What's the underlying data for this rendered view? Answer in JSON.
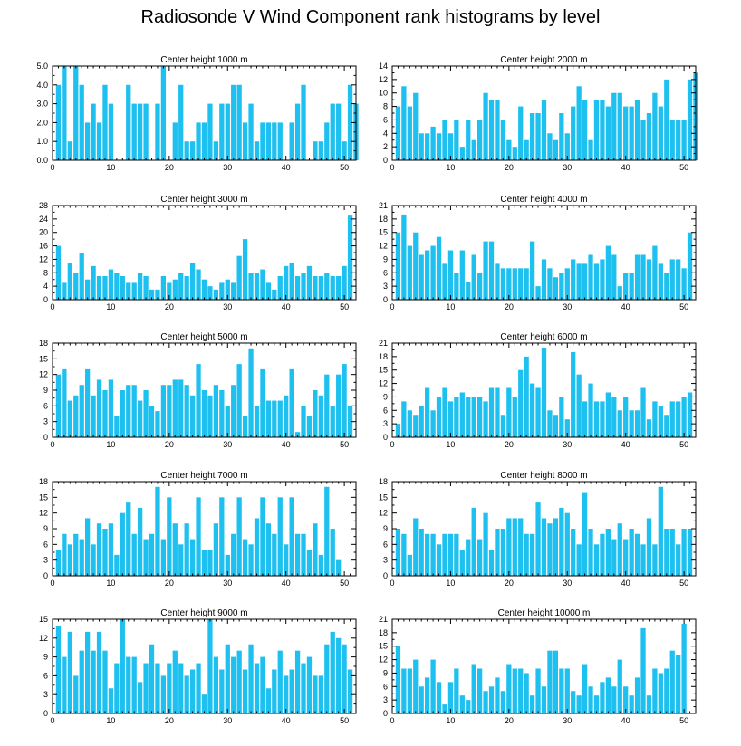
{
  "title": "Radiosonde V Wind Component rank histograms by level",
  "bar_color": "#1ec0f0",
  "chart_data": [
    {
      "type": "bar",
      "title": "Center height 1000 m",
      "xlim": [
        0,
        52
      ],
      "xticks": [
        0,
        10,
        20,
        30,
        40,
        50
      ],
      "ylim": [
        0,
        5
      ],
      "yticks": [
        "0.0",
        "1.0",
        "2.0",
        "3.0",
        "4.0",
        "5.0"
      ],
      "values": [
        4,
        5,
        1,
        5,
        4,
        2,
        3,
        2,
        4,
        3,
        0,
        0,
        4,
        3,
        3,
        3,
        0,
        3,
        5,
        0,
        2,
        4,
        1,
        1,
        2,
        2,
        3,
        1,
        3,
        3,
        4,
        4,
        2,
        3,
        1,
        2,
        2,
        2,
        2,
        0,
        2,
        3,
        4,
        0,
        1,
        1,
        2,
        3,
        3,
        1,
        4,
        3
      ]
    },
    {
      "type": "bar",
      "title": "Center height 2000 m",
      "xlim": [
        0,
        52
      ],
      "xticks": [
        0,
        10,
        20,
        30,
        40,
        50
      ],
      "ylim": [
        0,
        14
      ],
      "yticks": [
        "0",
        "2",
        "4",
        "6",
        "8",
        "10",
        "12",
        "14"
      ],
      "values": [
        8,
        11,
        8,
        10,
        4,
        4,
        5,
        4,
        6,
        4,
        6,
        2,
        6,
        3,
        6,
        10,
        9,
        9,
        6,
        3,
        2,
        8,
        3,
        7,
        7,
        9,
        4,
        3,
        7,
        4,
        8,
        11,
        9,
        3,
        9,
        9,
        8,
        10,
        10,
        8,
        8,
        9,
        6,
        7,
        10,
        8,
        12,
        6,
        6,
        6,
        12,
        13
      ]
    },
    {
      "type": "bar",
      "title": "Center height 3000 m",
      "xlim": [
        0,
        52
      ],
      "xticks": [
        0,
        10,
        20,
        30,
        40,
        50
      ],
      "ylim": [
        0,
        28
      ],
      "yticks": [
        "0",
        "4",
        "8",
        "12",
        "16",
        "20",
        "24",
        "28"
      ],
      "values": [
        16,
        5,
        11,
        8,
        14,
        6,
        10,
        7,
        7,
        9,
        8,
        7,
        5,
        5,
        8,
        7,
        3,
        3,
        7,
        5,
        6,
        8,
        7,
        11,
        9,
        6,
        4,
        3,
        5,
        6,
        5,
        13,
        18,
        8,
        8,
        9,
        5,
        3,
        7,
        10,
        11,
        7,
        8,
        10,
        7,
        7,
        8,
        7,
        7,
        10,
        25,
        0
      ]
    },
    {
      "type": "bar",
      "title": "Center height 4000 m",
      "xlim": [
        0,
        52
      ],
      "xticks": [
        0,
        10,
        20,
        30,
        40,
        50
      ],
      "ylim": [
        0,
        21
      ],
      "yticks": [
        "0",
        "3",
        "6",
        "9",
        "12",
        "15",
        "18",
        "21"
      ],
      "values": [
        15,
        19,
        12,
        15,
        10,
        11,
        12,
        14,
        8,
        11,
        6,
        11,
        4,
        10,
        6,
        13,
        13,
        8,
        7,
        7,
        7,
        7,
        7,
        13,
        3,
        9,
        7,
        5,
        6,
        7,
        9,
        8,
        8,
        10,
        8,
        9,
        12,
        10,
        3,
        6,
        6,
        10,
        10,
        9,
        12,
        8,
        6,
        9,
        9,
        7,
        15,
        0
      ]
    },
    {
      "type": "bar",
      "title": "Center height 5000 m",
      "xlim": [
        0,
        52
      ],
      "xticks": [
        0,
        10,
        20,
        30,
        40,
        50
      ],
      "ylim": [
        0,
        18
      ],
      "yticks": [
        "0",
        "3",
        "6",
        "9",
        "12",
        "15",
        "18"
      ],
      "values": [
        12,
        13,
        7,
        8,
        10,
        13,
        8,
        11,
        9,
        11,
        4,
        9,
        10,
        10,
        7,
        9,
        6,
        5,
        10,
        10,
        11,
        11,
        10,
        8,
        14,
        9,
        8,
        10,
        9,
        6,
        10,
        14,
        4,
        17,
        6,
        13,
        7,
        7,
        7,
        8,
        13,
        1,
        6,
        4,
        9,
        8,
        12,
        6,
        12,
        14,
        6,
        0
      ]
    },
    {
      "type": "bar",
      "title": "Center height 6000 m",
      "xlim": [
        0,
        52
      ],
      "xticks": [
        0,
        10,
        20,
        30,
        40,
        50
      ],
      "ylim": [
        0,
        21
      ],
      "yticks": [
        "0",
        "3",
        "6",
        "9",
        "12",
        "15",
        "18",
        "21"
      ],
      "values": [
        3,
        8,
        6,
        5,
        7,
        11,
        6,
        9,
        11,
        8,
        9,
        10,
        9,
        9,
        9,
        8,
        11,
        11,
        5,
        11,
        9,
        15,
        18,
        12,
        11,
        20,
        6,
        5,
        9,
        4,
        19,
        14,
        8,
        12,
        8,
        8,
        10,
        9,
        6,
        9,
        6,
        6,
        11,
        4,
        8,
        7,
        5,
        8,
        8,
        9,
        10,
        0
      ]
    },
    {
      "type": "bar",
      "title": "Center height 7000 m",
      "xlim": [
        0,
        52
      ],
      "xticks": [
        0,
        10,
        20,
        30,
        40,
        50
      ],
      "ylim": [
        0,
        18
      ],
      "yticks": [
        "0",
        "3",
        "6",
        "9",
        "12",
        "15",
        "18"
      ],
      "values": [
        5,
        8,
        6,
        8,
        7,
        11,
        6,
        10,
        9,
        10,
        4,
        12,
        14,
        8,
        13,
        7,
        8,
        17,
        7,
        15,
        10,
        6,
        10,
        7,
        15,
        5,
        5,
        10,
        15,
        4,
        8,
        15,
        7,
        6,
        11,
        15,
        10,
        8,
        15,
        6,
        15,
        8,
        8,
        5,
        10,
        4,
        17,
        9,
        3,
        0,
        0,
        0
      ]
    },
    {
      "type": "bar",
      "title": "Center height 8000 m",
      "xlim": [
        0,
        52
      ],
      "xticks": [
        0,
        10,
        20,
        30,
        40,
        50
      ],
      "ylim": [
        0,
        18
      ],
      "yticks": [
        "0",
        "3",
        "6",
        "9",
        "12",
        "15",
        "18"
      ],
      "values": [
        9,
        8,
        4,
        11,
        9,
        8,
        8,
        6,
        8,
        8,
        8,
        5,
        7,
        13,
        7,
        12,
        5,
        9,
        9,
        11,
        11,
        11,
        8,
        8,
        14,
        11,
        10,
        11,
        13,
        12,
        9,
        6,
        16,
        9,
        6,
        8,
        9,
        7,
        10,
        7,
        9,
        8,
        6,
        11,
        6,
        17,
        9,
        9,
        6,
        9,
        9,
        0
      ]
    },
    {
      "type": "bar",
      "title": "Center height 9000 m",
      "xlim": [
        0,
        52
      ],
      "xticks": [
        0,
        10,
        20,
        30,
        40,
        50
      ],
      "ylim": [
        0,
        15
      ],
      "yticks": [
        "0",
        "3",
        "6",
        "9",
        "12",
        "15"
      ],
      "values": [
        14,
        9,
        13,
        6,
        10,
        13,
        10,
        13,
        10,
        4,
        8,
        15,
        9,
        9,
        5,
        8,
        11,
        8,
        6,
        8,
        10,
        8,
        6,
        7,
        8,
        3,
        15,
        9,
        7,
        11,
        9,
        10,
        7,
        11,
        8,
        9,
        4,
        7,
        10,
        6,
        7,
        10,
        8,
        9,
        6,
        6,
        11,
        13,
        12,
        11,
        7,
        0
      ]
    },
    {
      "type": "bar",
      "title": "Center height 10000 m",
      "xlim": [
        0,
        52
      ],
      "xticks": [
        0,
        10,
        20,
        30,
        40,
        50
      ],
      "ylim": [
        0,
        21
      ],
      "yticks": [
        "0",
        "3",
        "6",
        "9",
        "12",
        "15",
        "18",
        "21"
      ],
      "values": [
        15,
        10,
        10,
        12,
        6,
        8,
        12,
        7,
        2,
        7,
        10,
        4,
        3,
        11,
        10,
        5,
        6,
        8,
        5,
        11,
        10,
        10,
        9,
        4,
        10,
        6,
        14,
        14,
        10,
        10,
        5,
        4,
        11,
        6,
        4,
        7,
        8,
        6,
        12,
        6,
        4,
        8,
        19,
        4,
        10,
        9,
        10,
        14,
        13,
        20,
        0,
        0
      ]
    }
  ]
}
